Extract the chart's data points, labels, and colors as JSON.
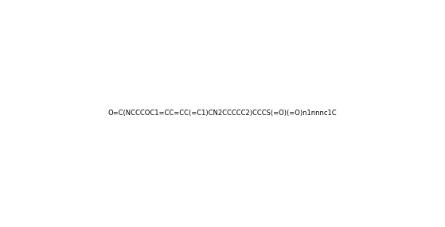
{
  "smiles": "O=C(NCCCOC1=CC=CC(=C1)CN2CCCCC2)CCCS(=O)(=O)n1nnnc1C",
  "title": "",
  "bg_color": "#ffffff",
  "fig_width": 5.59,
  "fig_height": 2.86,
  "dpi": 100
}
